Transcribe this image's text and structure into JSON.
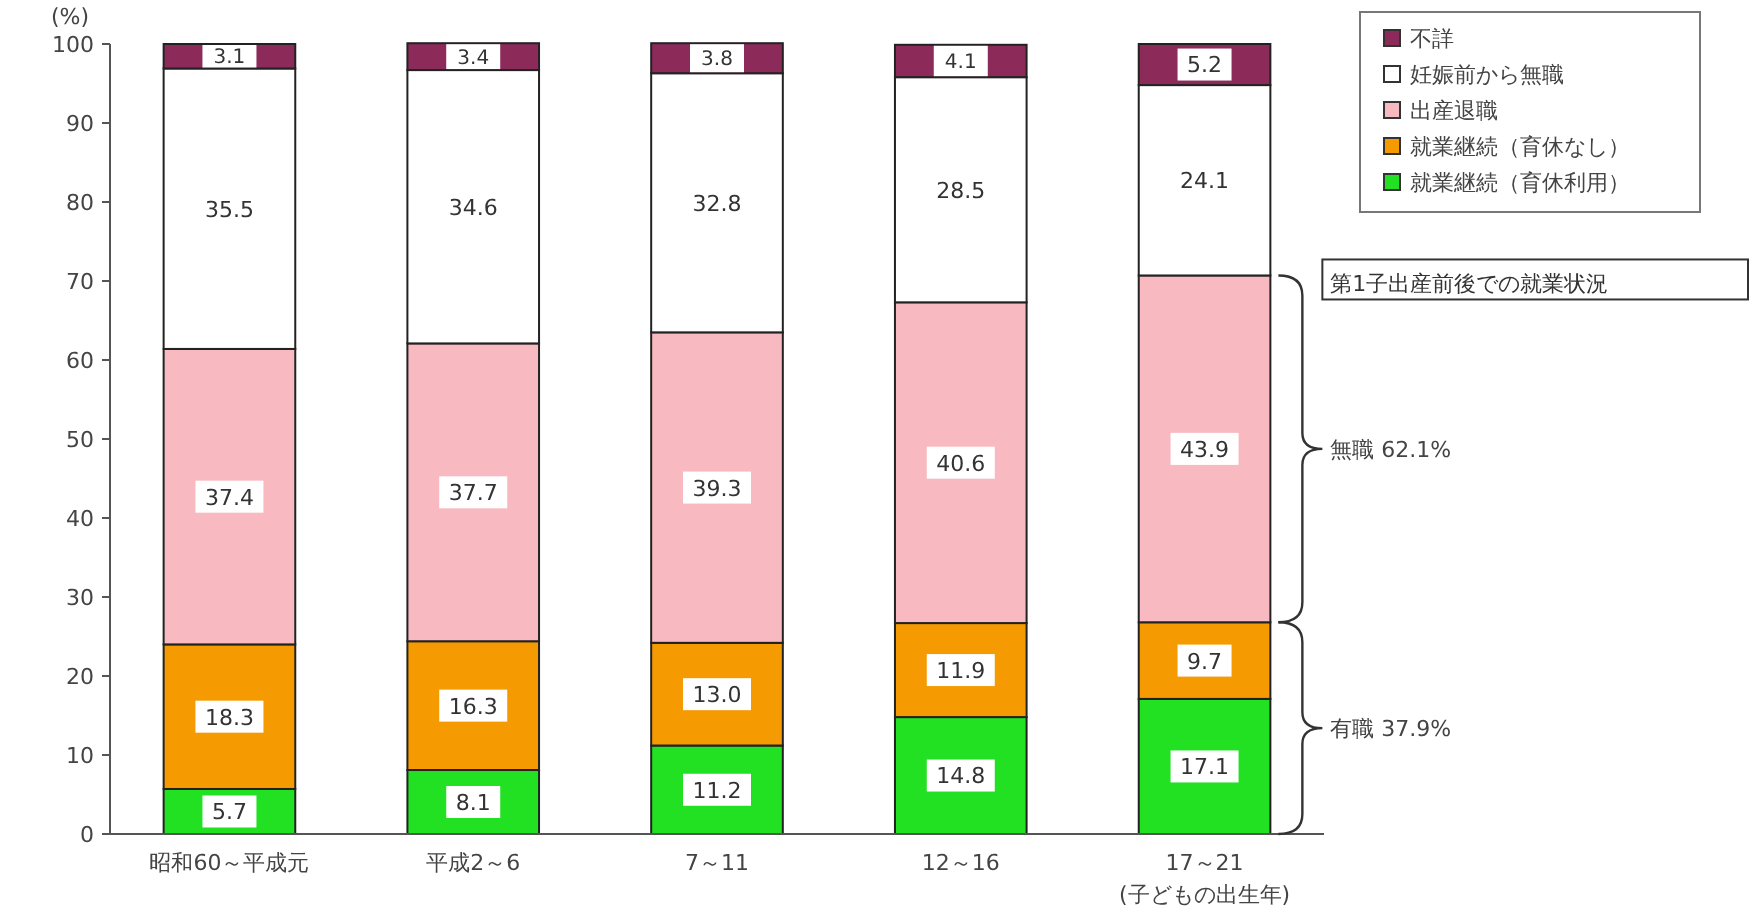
{
  "chart_data": {
    "type": "bar",
    "stacked": true,
    "ylabel": "(%)",
    "xlabel": "(子どもの出生年)",
    "categories": [
      "昭和60～平成元",
      "平成2～6",
      "7～11",
      "12～16",
      "17～21"
    ],
    "series": [
      {
        "name": "就業継続（育休利用）",
        "color": "#22e022",
        "values": [
          5.7,
          8.1,
          11.2,
          14.8,
          17.1
        ],
        "value_labels": [
          "5.7",
          "8.1",
          "11.2",
          "14.8",
          "17.1"
        ]
      },
      {
        "name": "就業継続（育休なし）",
        "color": "#f59a00",
        "values": [
          18.3,
          16.3,
          13.0,
          11.9,
          9.7
        ],
        "value_labels": [
          "18.3",
          "16.3",
          "13.0",
          "11.9",
          "9.7"
        ]
      },
      {
        "name": "出産退職",
        "color": "#f9b9c0",
        "values": [
          37.4,
          37.7,
          39.3,
          40.6,
          43.9
        ],
        "value_labels": [
          "37.4",
          "37.7",
          "39.3",
          "40.6",
          "43.9"
        ]
      },
      {
        "name": "妊娠前から無職",
        "color": "#ffffff",
        "values": [
          35.5,
          34.6,
          32.8,
          28.5,
          24.1
        ],
        "value_labels": [
          "35.5",
          "34.6",
          "32.8",
          "28.5",
          "24.1"
        ]
      },
      {
        "name": "不詳",
        "color": "#8c2a5a",
        "values": [
          3.1,
          3.4,
          3.8,
          4.1,
          5.2
        ],
        "value_labels": [
          "3.1",
          "3.4",
          "3.8",
          "4.1",
          "5.2"
        ]
      }
    ],
    "ylim": [
      0,
      100
    ],
    "yticks": [
      0,
      10,
      20,
      30,
      40,
      50,
      60,
      70,
      80,
      90,
      100
    ],
    "legend": "top right",
    "annotations": [
      "第1子出産前後での就業状況",
      "無職 62.1%",
      "有職 37.9%"
    ]
  }
}
